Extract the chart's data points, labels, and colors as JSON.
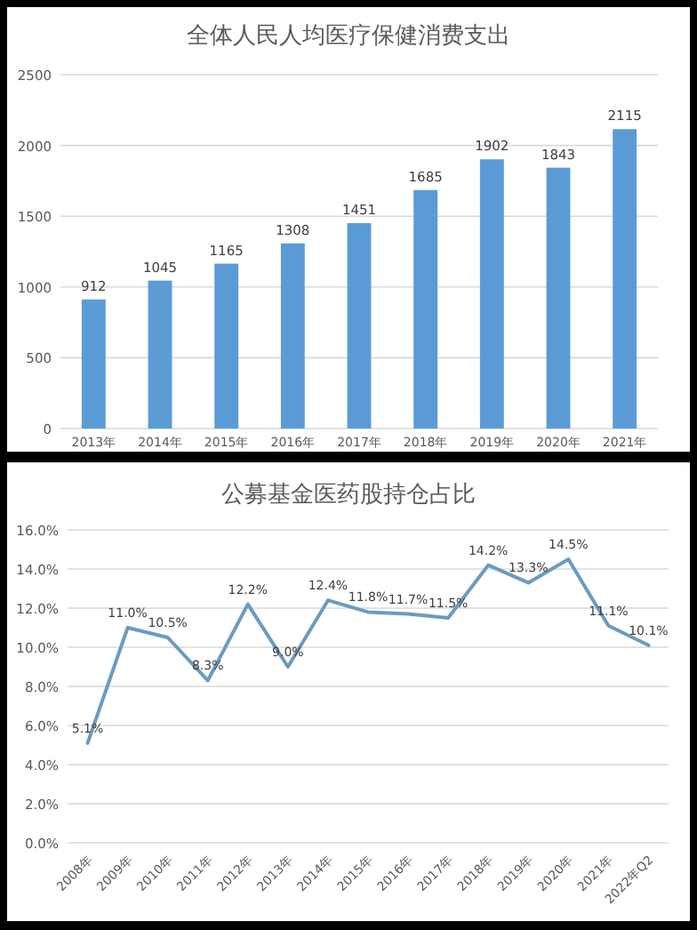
{
  "chart_data": [
    {
      "type": "bar",
      "title": "全体人民人均医疗保健消费支出",
      "categories": [
        "2013年",
        "2014年",
        "2015年",
        "2016年",
        "2017年",
        "2018年",
        "2019年",
        "2020年",
        "2021年"
      ],
      "values": [
        912,
        1045,
        1165,
        1308,
        1451,
        1685,
        1902,
        1843,
        2115
      ],
      "color": "#5b9bd5",
      "ylim": [
        0,
        2500
      ],
      "yticks": [
        0,
        500,
        1000,
        1500,
        2000,
        2500
      ],
      "grid": "y",
      "data_labels": true
    },
    {
      "type": "line",
      "title": "公募基金医药股持仓占比",
      "categories": [
        "2008年",
        "2009年",
        "2010年",
        "2011年",
        "2012年",
        "2013年",
        "2014年",
        "2015年",
        "2016年",
        "2017年",
        "2018年",
        "2019年",
        "2020年",
        "2021年",
        "2022年Q2"
      ],
      "values": [
        5.1,
        11.0,
        10.5,
        8.3,
        12.2,
        9.0,
        12.4,
        11.8,
        11.7,
        11.5,
        14.2,
        13.3,
        14.5,
        11.1,
        10.1
      ],
      "value_labels": [
        "5.1%",
        "11.0%",
        "10.5%",
        "8.3%",
        "12.2%",
        "9.0%",
        "12.4%",
        "11.8%",
        "11.7%",
        "11.5%",
        "14.2%",
        "13.3%",
        "14.5%",
        "11.1%",
        "10.1%"
      ],
      "color": "#6b9bc0",
      "ylim": [
        0,
        16
      ],
      "yticks": [
        {
          "value": 0,
          "label": "0.0%"
        },
        {
          "value": 2,
          "label": "2.0%"
        },
        {
          "value": 4,
          "label": "4.0%"
        },
        {
          "value": 6,
          "label": "6.0%"
        },
        {
          "value": 8,
          "label": "8.0%"
        },
        {
          "value": 10,
          "label": "10.0%"
        },
        {
          "value": 12,
          "label": "12.0%"
        },
        {
          "value": 14,
          "label": "14.0%"
        },
        {
          "value": 16,
          "label": "16.0%"
        }
      ],
      "grid": "y",
      "marker": "none",
      "line_style": "solid"
    }
  ]
}
